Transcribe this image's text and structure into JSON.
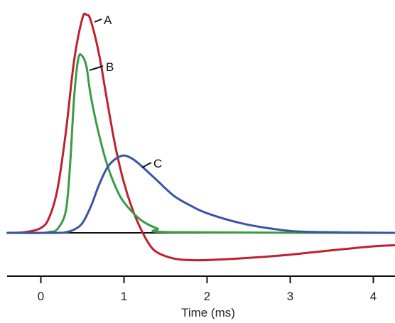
{
  "chart_data": {
    "type": "line",
    "title": "",
    "xlabel": "Time (ms)",
    "ylabel": "",
    "xlim": [
      -0.4,
      4.25
    ],
    "ylim": [
      -0.2,
      1.0
    ],
    "xticks": [
      {
        "value": 0,
        "label": "0"
      },
      {
        "value": 1,
        "label": "1"
      },
      {
        "value": 2,
        "label": "2"
      },
      {
        "value": 3,
        "label": "3"
      },
      {
        "value": 4,
        "label": "4"
      }
    ],
    "baseline_y": 0,
    "series": [
      {
        "name": "A",
        "color": "#c0202e",
        "x": [
          -0.4,
          -0.2,
          0.0,
          0.1,
          0.2,
          0.3,
          0.4,
          0.5,
          0.55,
          0.6,
          0.7,
          0.8,
          0.9,
          1.0,
          1.1,
          1.2,
          1.3,
          1.4,
          1.6,
          1.8,
          2.0,
          2.5,
          3.0,
          3.5,
          4.0,
          4.25
        ],
        "y": [
          0.0,
          0.003,
          0.022,
          0.07,
          0.2,
          0.46,
          0.79,
          0.985,
          1.0,
          0.975,
          0.82,
          0.6,
          0.39,
          0.23,
          0.11,
          0.02,
          -0.05,
          -0.09,
          -0.118,
          -0.125,
          -0.125,
          -0.115,
          -0.1,
          -0.08,
          -0.062,
          -0.057
        ]
      },
      {
        "name": "B",
        "color": "#3a9a46",
        "x": [
          -0.4,
          0.0,
          0.1,
          0.2,
          0.3,
          0.35,
          0.4,
          0.45,
          0.5,
          0.55,
          0.6,
          0.7,
          0.8,
          0.9,
          1.0,
          1.2,
          1.4,
          1.6,
          4.25
        ],
        "y": [
          0.0,
          0.0,
          0.004,
          0.018,
          0.1,
          0.3,
          0.62,
          0.8,
          0.81,
          0.76,
          0.63,
          0.45,
          0.31,
          0.21,
          0.14,
          0.06,
          0.02,
          0.003,
          0.0
        ]
      },
      {
        "name": "C",
        "color": "#3a54a4",
        "x": [
          -0.4,
          0.2,
          0.3,
          0.4,
          0.5,
          0.6,
          0.7,
          0.8,
          0.9,
          1.0,
          1.1,
          1.2,
          1.4,
          1.6,
          1.8,
          2.0,
          2.4,
          2.8,
          3.2,
          4.25
        ],
        "y": [
          0.0,
          0.0,
          0.003,
          0.015,
          0.045,
          0.12,
          0.22,
          0.3,
          0.34,
          0.355,
          0.34,
          0.31,
          0.24,
          0.17,
          0.125,
          0.09,
          0.045,
          0.018,
          0.005,
          0.0
        ]
      }
    ],
    "curve_labels": [
      {
        "text": "A",
        "series": "A"
      },
      {
        "text": "B",
        "series": "B"
      },
      {
        "text": "C",
        "series": "C"
      }
    ],
    "grid": false,
    "legend": "none (inline curve labels)"
  }
}
